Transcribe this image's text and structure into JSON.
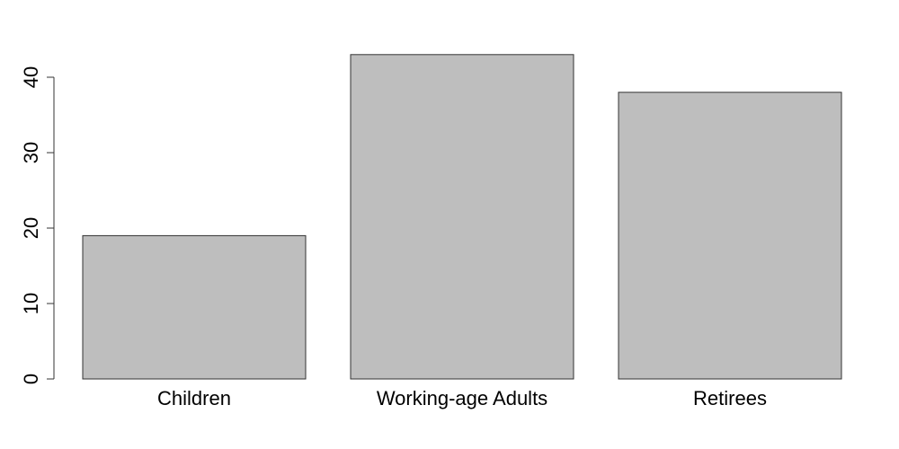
{
  "chart_data": {
    "type": "bar",
    "categories": [
      "Children",
      "Working-age Adults",
      "Retirees"
    ],
    "values": [
      19,
      43,
      38
    ],
    "title": "",
    "xlabel": "",
    "ylabel": "",
    "ylim": [
      0,
      40
    ],
    "yticks": [
      0,
      10,
      20,
      30,
      40
    ],
    "grid": false,
    "colors": {
      "bar_fill": "#bebebe",
      "bar_border": "#333333",
      "axis": "#333333",
      "text": "#000000"
    }
  }
}
